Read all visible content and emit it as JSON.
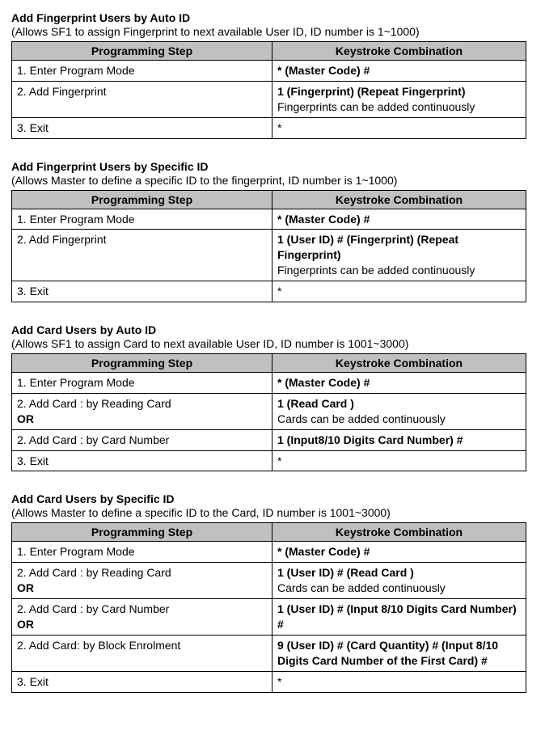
{
  "common": {
    "header_step": "Programming Step",
    "header_key": "Keystroke Combination"
  },
  "sections": [
    {
      "title": "Add Fingerprint Users by Auto ID",
      "desc": "(Allows SF1 to assign Fingerprint to next available User ID, ID number is 1~1000)",
      "rows": [
        {
          "step": [
            {
              "t": "1. Enter Program Mode"
            }
          ],
          "key": [
            {
              "t": "* (Master Code)   #",
              "b": true
            }
          ]
        },
        {
          "step": [
            {
              "t": "2. Add Fingerprint"
            }
          ],
          "key": [
            {
              "t": "1 (Fingerprint) (Repeat Fingerprint)",
              "b": true
            },
            {
              "t": "Fingerprints can be added continuously"
            }
          ]
        },
        {
          "step": [
            {
              "t": "3. Exit"
            }
          ],
          "key": [
            {
              "t": "*"
            }
          ]
        }
      ]
    },
    {
      "title": "Add Fingerprint Users by Specific ID",
      "desc": "(Allows Master to define a specific ID to the fingerprint, ID number is 1~1000)",
      "rows": [
        {
          "step": [
            {
              "t": "1. Enter Program Mode"
            }
          ],
          "key": [
            {
              "t": "* (Master Code)   #",
              "b": true
            }
          ]
        },
        {
          "step": [
            {
              "t": "2. Add Fingerprint"
            }
          ],
          "key": [
            {
              "t": "1 (User ID) # (Fingerprint) (Repeat Fingerprint)",
              "b": true
            },
            {
              "t": "Fingerprints can be added continuously"
            }
          ]
        },
        {
          "step": [
            {
              "t": "3. Exit"
            }
          ],
          "key": [
            {
              "t": "*"
            }
          ]
        }
      ]
    },
    {
      "title": "Add Card Users by Auto ID",
      "desc": "(Allows SF1 to assign Card to next available User ID, ID number is 1001~3000)",
      "rows": [
        {
          "step": [
            {
              "t": "1. Enter Program Mode"
            }
          ],
          "key": [
            {
              "t": "* (Master Code) #",
              "b": true
            }
          ]
        },
        {
          "step": [
            {
              "t": "2. Add Card : by Reading Card"
            },
            {
              "t": "OR",
              "b": true
            }
          ],
          "key": [
            {
              "t": "1 (Read Card )",
              "b": true
            },
            {
              "t": "Cards can be added continuously"
            }
          ]
        },
        {
          "step": [
            {
              "t": "2. Add Card : by Card Number"
            }
          ],
          "key": [
            {
              "t": "1 (Input8/10 Digits Card Number) #",
              "b": true
            }
          ]
        },
        {
          "step": [
            {
              "t": "3. Exit"
            }
          ],
          "key": [
            {
              "t": "*"
            }
          ]
        }
      ]
    },
    {
      "title": "Add Card Users by Specific ID",
      "desc": "(Allows Master to define a specific ID to the Card, ID number is 1001~3000)",
      "rows": [
        {
          "step": [
            {
              "t": "1. Enter Program Mode"
            }
          ],
          "key": [
            {
              "t": "* (Master Code)    #",
              "b": true
            }
          ]
        },
        {
          "step": [
            {
              "t": "2. Add Card : by Reading Card"
            },
            {
              "t": "OR",
              "b": true
            }
          ],
          "key": [
            {
              "t": "1 (User ID) #  (Read Card )",
              "b": true
            },
            {
              "t": "Cards can be added continuously"
            }
          ]
        },
        {
          "step": [
            {
              "t": "2. Add Card : by Card Number"
            },
            {
              "t": "OR",
              "b": true
            }
          ],
          "key": [
            {
              "t": "1 (User ID) #  (Input 8/10 Digits Card Number) #",
              "b": true
            }
          ]
        },
        {
          "step": [
            {
              "t": "2. Add Card: by Block Enrolment"
            }
          ],
          "key": [
            {
              "t": "9 (User ID) # (Card Quantity) # (Input 8/10 Digits Card Number of the First Card) #",
              "b": true
            }
          ]
        },
        {
          "step": [
            {
              "t": "3. Exit"
            }
          ],
          "key": [
            {
              "t": "*"
            }
          ]
        }
      ]
    }
  ]
}
